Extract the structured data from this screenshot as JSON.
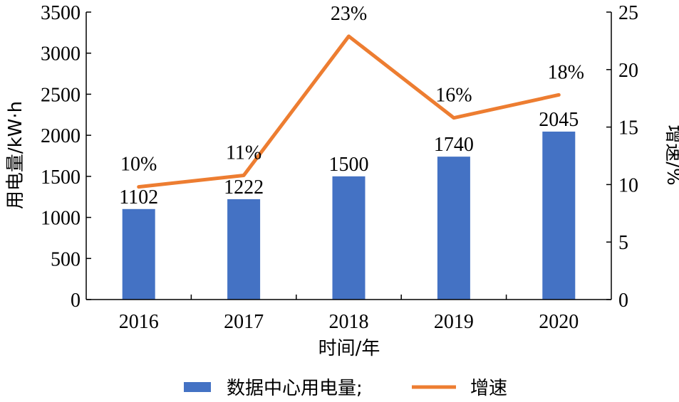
{
  "chart_data": {
    "type": "bar+line",
    "categories": [
      "2016",
      "2017",
      "2018",
      "2019",
      "2020"
    ],
    "series": [
      {
        "name": "数据中心用电量;",
        "type": "bar",
        "axis": "left",
        "values": [
          1102,
          1222,
          1500,
          1740,
          2045
        ],
        "labels": [
          "1102",
          "1222",
          "1500",
          "1740",
          "2045"
        ],
        "color": "#4472C4"
      },
      {
        "name": "增速",
        "type": "line",
        "axis": "right",
        "values": [
          9.8,
          10.8,
          22.9,
          15.8,
          17.8
        ],
        "labels": [
          "10%",
          "11%",
          "23%",
          "16%",
          "18%"
        ],
        "color": "#ED7D31"
      }
    ],
    "xlabel": "时间/年",
    "ylabel_left": "用电量/kW·h",
    "ylabel_right": "增速/%",
    "ylim_left": [
      0,
      3500
    ],
    "yticks_left": [
      "0",
      "500",
      "1000",
      "1500",
      "2000",
      "2500",
      "3000",
      "3500"
    ],
    "ylim_right": [
      0,
      25
    ],
    "yticks_right": [
      "0",
      "5",
      "10",
      "15",
      "20",
      "25"
    ],
    "grid": false,
    "legend_position": "bottom"
  }
}
